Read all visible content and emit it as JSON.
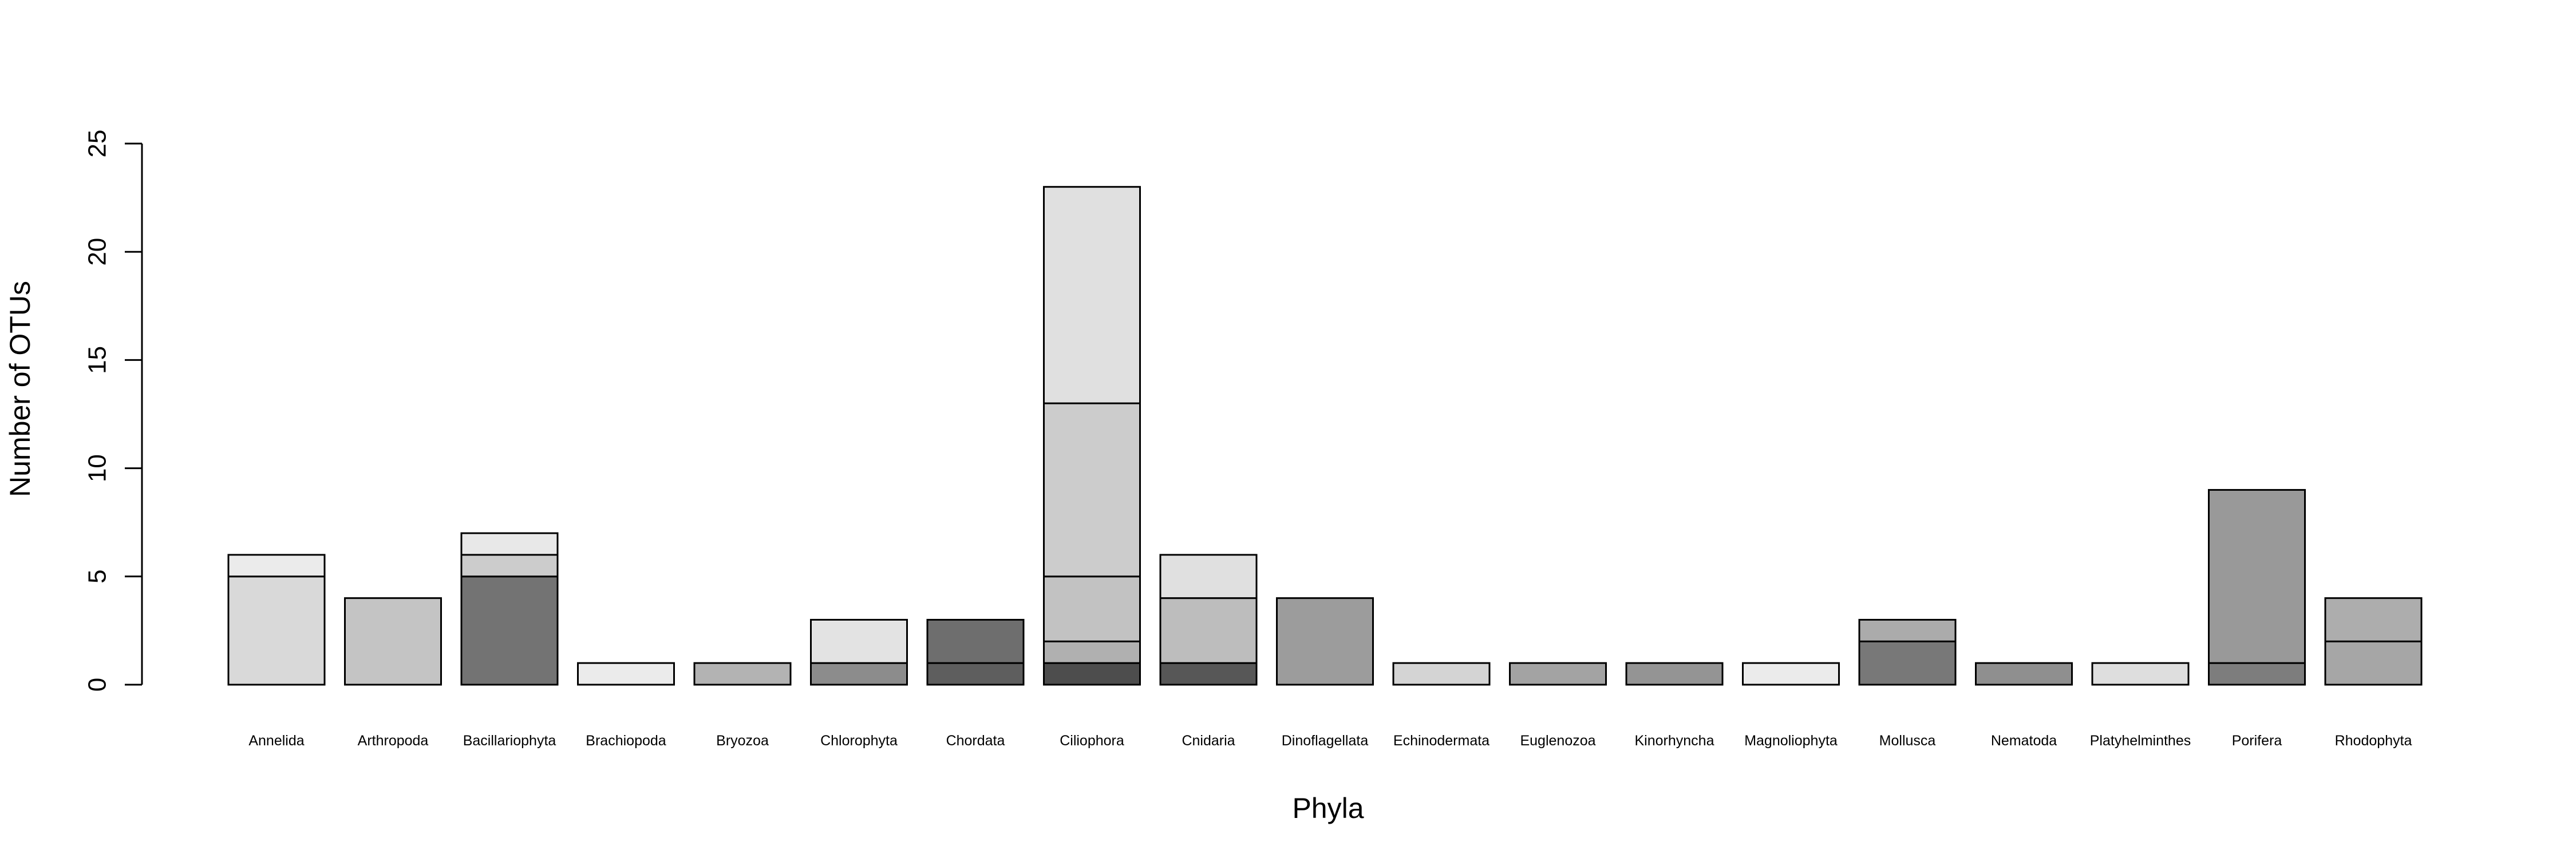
{
  "chart_data": {
    "type": "bar",
    "stacked": true,
    "title": "",
    "xlabel": "Phyla",
    "ylabel": "Number of OTUs",
    "ylim": [
      0,
      25
    ],
    "yticks": [
      0,
      5,
      10,
      15,
      20,
      25
    ],
    "grid": false,
    "legend": "none",
    "categories": [
      "Annelida",
      "Arthropoda",
      "Bacillariophyta",
      "Brachiopoda",
      "Bryozoa",
      "Chlorophyta",
      "Chordata",
      "Ciliophora",
      "Cnidaria",
      "Dinoflagellata",
      "Echinodermata",
      "Euglenozoa",
      "Kinorhyncha",
      "Magnoliophyta",
      "Mollusca",
      "Nematoda",
      "Platyhelminthes",
      "Porifera",
      "Rhodophyta"
    ],
    "stacks": [
      [
        {
          "value": 5,
          "color": "#d9d9d9"
        },
        {
          "value": 1,
          "color": "#ebebeb"
        }
      ],
      [
        {
          "value": 4,
          "color": "#c4c4c4"
        }
      ],
      [
        {
          "value": 5,
          "color": "#737373"
        },
        {
          "value": 1,
          "color": "#cccccc"
        },
        {
          "value": 1,
          "color": "#e8e8e8"
        }
      ],
      [
        {
          "value": 1,
          "color": "#ebebeb"
        }
      ],
      [
        {
          "value": 1,
          "color": "#b3b3b3"
        }
      ],
      [
        {
          "value": 1,
          "color": "#8c8c8c"
        },
        {
          "value": 2,
          "color": "#e3e3e3"
        }
      ],
      [
        {
          "value": 1,
          "color": "#5e5e5e"
        },
        {
          "value": 2,
          "color": "#6e6e6e"
        }
      ],
      [
        {
          "value": 1,
          "color": "#4d4d4d"
        },
        {
          "value": 1,
          "color": "#b0b0b0"
        },
        {
          "value": 3,
          "color": "#c2c2c2"
        },
        {
          "value": 8,
          "color": "#cccccc"
        },
        {
          "value": 10,
          "color": "#e0e0e0"
        }
      ],
      [
        {
          "value": 1,
          "color": "#575757"
        },
        {
          "value": 3,
          "color": "#bdbdbd"
        },
        {
          "value": 2,
          "color": "#e0e0e0"
        }
      ],
      [
        {
          "value": 4,
          "color": "#9c9c9c"
        }
      ],
      [
        {
          "value": 1,
          "color": "#d4d4d4"
        }
      ],
      [
        {
          "value": 1,
          "color": "#a3a3a3"
        }
      ],
      [
        {
          "value": 1,
          "color": "#949494"
        }
      ],
      [
        {
          "value": 1,
          "color": "#ebebeb"
        }
      ],
      [
        {
          "value": 2,
          "color": "#787878"
        },
        {
          "value": 1,
          "color": "#ababab"
        }
      ],
      [
        {
          "value": 1,
          "color": "#8f8f8f"
        }
      ],
      [
        {
          "value": 1,
          "color": "#dedede"
        }
      ],
      [
        {
          "value": 1,
          "color": "#7d7d7d"
        },
        {
          "value": 8,
          "color": "#999999"
        }
      ],
      [
        {
          "value": 2,
          "color": "#a6a6a6"
        },
        {
          "value": 2,
          "color": "#adadad"
        }
      ]
    ]
  }
}
